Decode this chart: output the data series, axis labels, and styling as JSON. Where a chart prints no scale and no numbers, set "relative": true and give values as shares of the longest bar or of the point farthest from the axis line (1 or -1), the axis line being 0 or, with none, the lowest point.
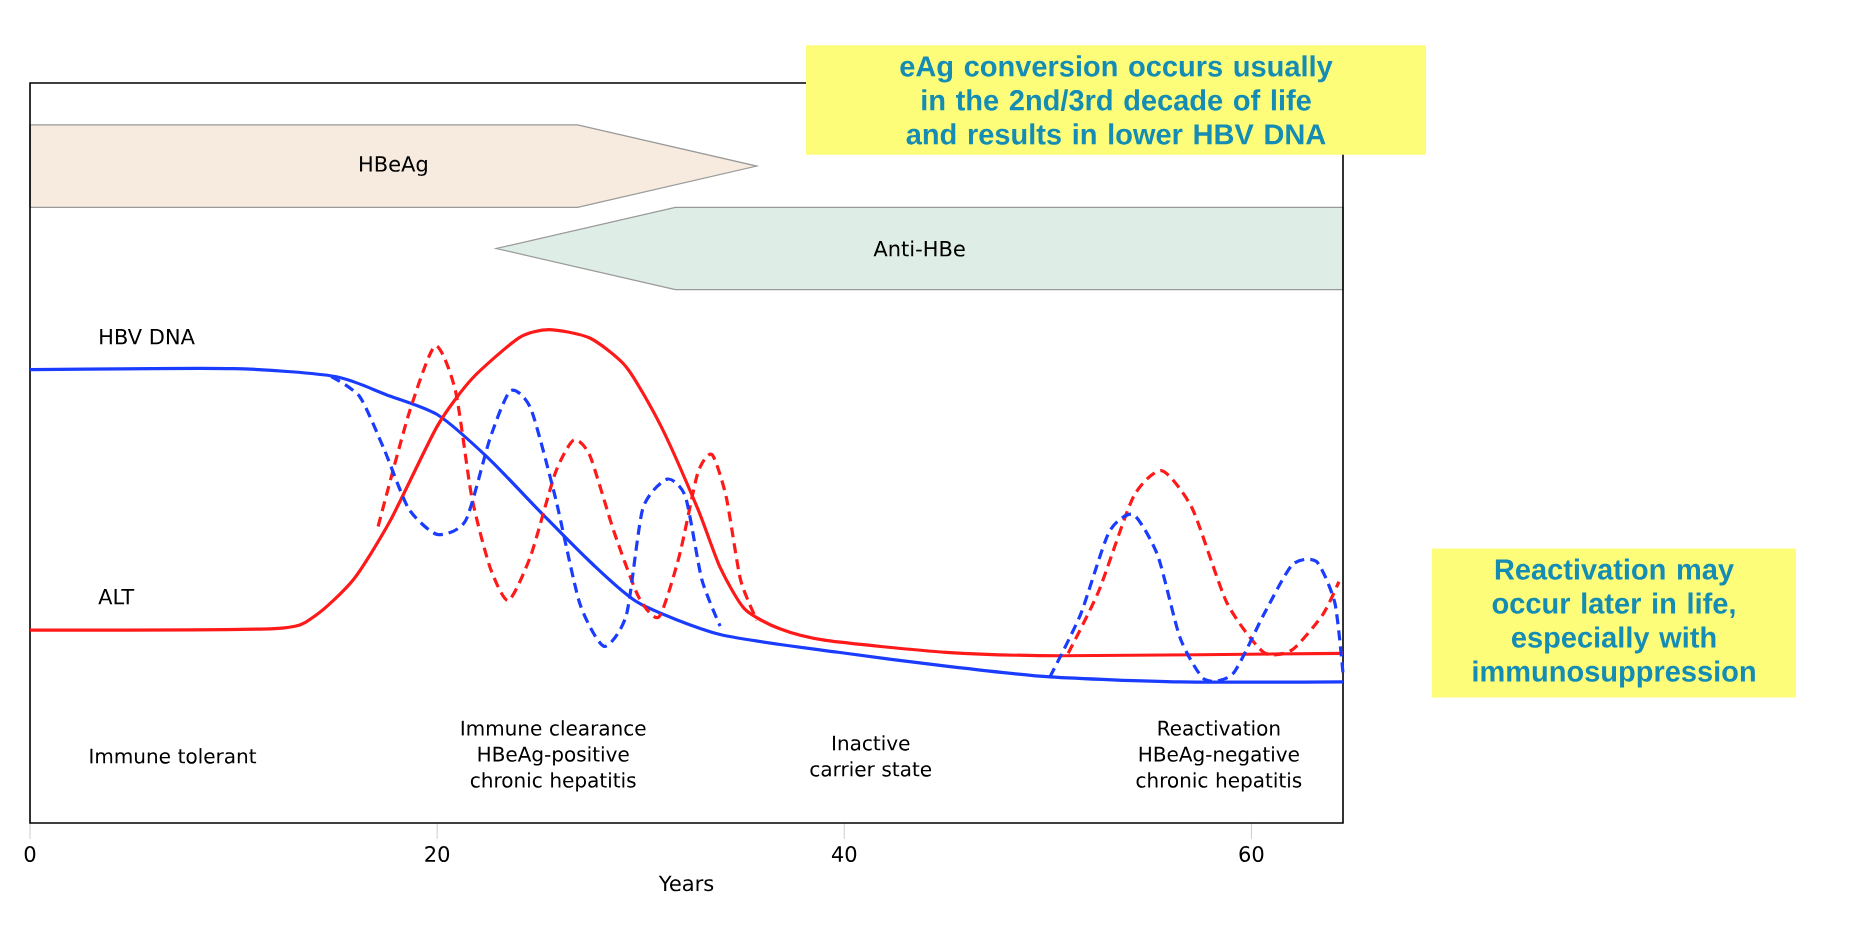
{
  "chart_data": {
    "type": "line",
    "relative": true,
    "xlabel": "Years",
    "xlim": [
      0,
      64.5
    ],
    "xticks": [
      0,
      20,
      40,
      60
    ],
    "tick_labels": "x",
    "series": [
      {
        "name": "HBV DNA",
        "color": "#1a3cff",
        "x": [
          0,
          10,
          15,
          17.5,
          20,
          22.5,
          25.2,
          27.5,
          29.9,
          33.9,
          39.7,
          45,
          50.1,
          56.5,
          64.5
        ],
        "values": [
          0.919,
          0.921,
          0.905,
          0.868,
          0.828,
          0.74,
          0.625,
          0.53,
          0.446,
          0.382,
          0.346,
          0.318,
          0.296,
          0.286,
          0.286
        ]
      },
      {
        "name": "ALT",
        "color": "#ff1a1a",
        "x": [
          0,
          12,
          14,
          15.9,
          17.7,
          20,
          21.7,
          24,
          25.5,
          27.5,
          29.3,
          31,
          32.8,
          33.9,
          35.1,
          36.8,
          39.1,
          45,
          50.7,
          64.5
        ],
        "values": [
          0.391,
          0.394,
          0.42,
          0.494,
          0.613,
          0.804,
          0.9,
          0.983,
          1.0,
          0.983,
          0.924,
          0.804,
          0.637,
          0.518,
          0.434,
          0.394,
          0.37,
          0.346,
          0.339,
          0.344
        ]
      },
      {
        "color": "#ff1a1a",
        "line_style": "dashed",
        "x": [
          17.1,
          18.6,
          19.9,
          20.9,
          21.7,
          22.6,
          23.5,
          24.6,
          25.8,
          26.7,
          27.5,
          28.7,
          29.9,
          30.9,
          31.9,
          32.8,
          33.5,
          34.2,
          34.9,
          35.7,
          43,
          51,
          52.5,
          54.2,
          55.6,
          57.1,
          58.8,
          60.6,
          62,
          63.5,
          64.3
        ],
        "values": [
          0.601,
          0.828,
          0.967,
          0.876,
          0.661,
          0.518,
          0.451,
          0.542,
          0.709,
          0.776,
          0.745,
          0.589,
          0.458,
          0.418,
          0.542,
          0.709,
          0.747,
          0.661,
          0.494,
          0.411,
          null,
          0.344,
          0.47,
          0.661,
          0.714,
          0.637,
          0.446,
          0.346,
          0.351,
          0.422,
          0.489
        ]
      },
      {
        "color": "#1a3cff",
        "line_style": "dashed",
        "x": [
          14.8,
          16.2,
          17.4,
          18.6,
          20,
          21.4,
          22.6,
          23.6,
          24.6,
          25.8,
          27,
          28.2,
          29.3,
          30.1,
          31.3,
          32.2,
          33,
          33.9,
          42,
          50.1,
          51.6,
          53,
          54.2,
          55.4,
          56.5,
          57.7,
          59.1,
          60.6,
          62,
          63.2,
          64.1,
          64.5
        ],
        "values": [
          0.905,
          0.864,
          0.757,
          0.637,
          0.585,
          0.613,
          0.78,
          0.876,
          0.84,
          0.661,
          0.446,
          0.358,
          0.422,
          0.637,
          0.697,
          0.661,
          0.494,
          0.399,
          null,
          0.296,
          0.422,
          0.589,
          0.625,
          0.542,
          0.375,
          0.291,
          0.303,
          0.422,
          0.523,
          0.53,
          0.446,
          0.303
        ]
      }
    ],
    "annotations": [
      "Immune tolerant",
      "Immune clearance HBeAg-positive chronic hepatitis",
      "Inactive carrier state",
      "Reactivation HBeAg-negative chronic hepatitis",
      "eAg conversion occurs usually in the 2nd/3rd decade of life and results in lower HBV DNA",
      "Reactivation may occur later in life, especially with immunosuppression",
      "HBeAg",
      "Anti-HBe"
    ]
  }
}
